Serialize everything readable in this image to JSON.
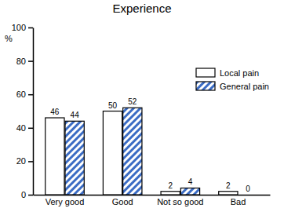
{
  "chart_data": {
    "type": "bar",
    "title": "Experience",
    "y_label": "%",
    "categories": [
      "Very good",
      "Good",
      "Not so good",
      "Bad"
    ],
    "series": [
      {
        "name": "Local pain",
        "color": "#ffffff",
        "values": [
          46,
          50,
          2,
          2
        ]
      },
      {
        "name": "General pain",
        "color": "#3b6cc4",
        "values": [
          44,
          52,
          4,
          0
        ]
      }
    ],
    "ylim": [
      0,
      100
    ],
    "yticks": [
      0,
      20,
      40,
      60,
      80,
      100
    ],
    "data_labels": true,
    "legend": "upper right"
  }
}
